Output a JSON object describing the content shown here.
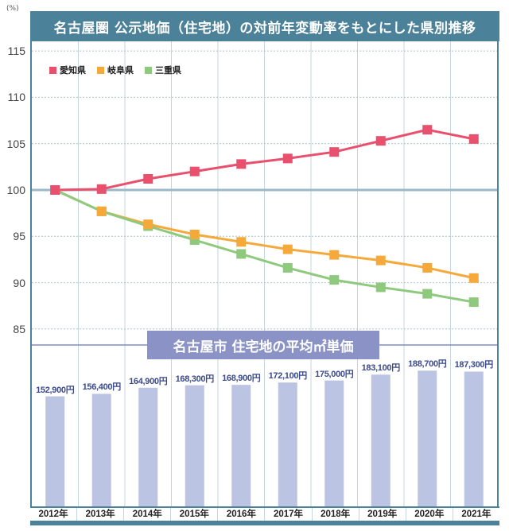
{
  "chart_data": [
    {
      "type": "line",
      "title": "名古屋圏 公示地価（住宅地）の対前年変動率をもとにした県別推移",
      "ylabel": "(%)",
      "ylim": [
        83,
        115
      ],
      "yticks": [
        115,
        110,
        105,
        100,
        95,
        90,
        85
      ],
      "categories": [
        "2012年",
        "2013年",
        "2014年",
        "2015年",
        "2016年",
        "2017年",
        "2018年",
        "2019年",
        "2020年",
        "2021年"
      ],
      "legend_position": "top-left",
      "grid": true,
      "series": [
        {
          "name": "愛知県",
          "color": "#e8506d",
          "values": [
            100.0,
            100.1,
            101.2,
            102.0,
            102.8,
            103.4,
            104.1,
            105.3,
            106.5,
            105.5
          ]
        },
        {
          "name": "岐阜県",
          "color": "#f5a93a",
          "values": [
            100.0,
            97.7,
            96.3,
            95.2,
            94.4,
            93.6,
            93.0,
            92.4,
            91.6,
            90.5
          ]
        },
        {
          "name": "三重県",
          "color": "#8ec97e",
          "values": [
            100.0,
            97.7,
            96.1,
            94.6,
            93.1,
            91.6,
            90.3,
            89.5,
            88.8,
            87.9
          ]
        }
      ]
    },
    {
      "type": "bar",
      "title": "名古屋市 住宅地の平均㎡単価",
      "categories": [
        "2012年",
        "2013年",
        "2014年",
        "2015年",
        "2016年",
        "2017年",
        "2018年",
        "2019年",
        "2020年",
        "2021年"
      ],
      "values": [
        152900,
        156400,
        164900,
        168300,
        168900,
        172100,
        175000,
        183100,
        188700,
        187300
      ],
      "labels": [
        "152,900円",
        "156,400円",
        "164,900円",
        "168,300円",
        "168,900円",
        "172,100円",
        "175,000円",
        "183,100円",
        "188,700円",
        "187,300円"
      ],
      "color": "#bcc4e4",
      "ylim": [
        0,
        200000
      ]
    }
  ],
  "header": {
    "unit": "(%)",
    "title": "名古屋圏 公示地価（住宅地）の対前年変動率をもとにした県別推移"
  },
  "bar_section": {
    "title": "名古屋市 住宅地の平均㎡単価"
  },
  "colors": {
    "frame": "#4b8199",
    "grid": "#c5d6de",
    "baseline": "#9bb8c8",
    "subtitle_bg": "#8b93c6"
  }
}
